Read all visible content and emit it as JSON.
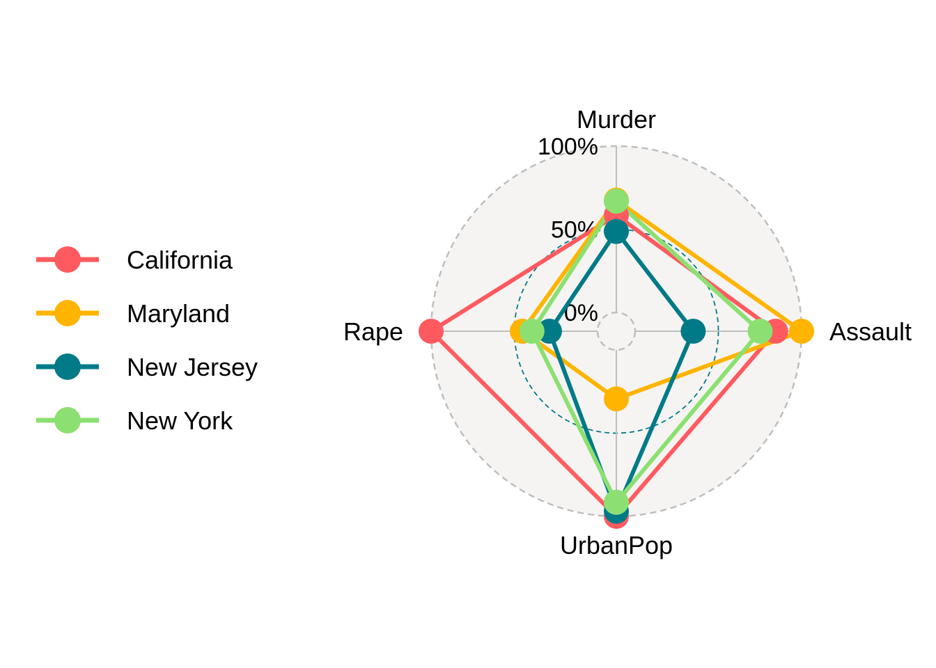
{
  "chart_data": {
    "type": "radar",
    "axes": [
      "Murder",
      "Assault",
      "UrbanPop",
      "Rape"
    ],
    "grid_labels": [
      "0%",
      "50%",
      "100%"
    ],
    "range": [
      0,
      100
    ],
    "unit": "%",
    "background_color": "#F5F4F2",
    "grid_color": "#BEBEBE",
    "mid_grid_color": "#007A87",
    "legend_position": "left",
    "series": [
      {
        "name": "California",
        "color": "#FF5A5F",
        "values": [
          58.5,
          84.4,
          100.0,
          100.0
        ]
      },
      {
        "name": "Maryland",
        "color": "#FFB400",
        "values": [
          67.5,
          100.0,
          29.4,
          45.2
        ]
      },
      {
        "name": "New Jersey",
        "color": "#007A87",
        "values": [
          48.7,
          34.9,
          96.9,
          28.9
        ]
      },
      {
        "name": "New York",
        "color": "#8CE071",
        "values": [
          66.9,
          75.1,
          91.6,
          39.4
        ]
      }
    ]
  }
}
